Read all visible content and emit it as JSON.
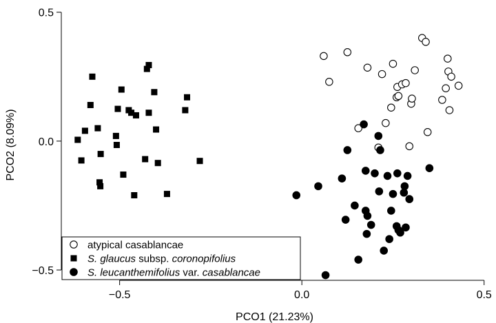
{
  "chart_data": {
    "type": "scatter",
    "title": "",
    "xlabel": "PCO1 (21.23%)",
    "ylabel": "PCO2 (8.09%)",
    "xlim": [
      -0.66,
      0.51
    ],
    "ylim": [
      -0.54,
      0.51
    ],
    "x_ticks": [
      -0.5,
      0.0,
      0.5
    ],
    "y_ticks": [
      -0.5,
      0.0,
      0.5
    ],
    "x_tick_labels": [
      "−0.5",
      "0.0",
      "0.5"
    ],
    "y_tick_labels": [
      "−0.5",
      "0.0",
      "0.5"
    ],
    "grid": false,
    "legend_position": "bottom-left",
    "series": [
      {
        "name": "atypical casablancae",
        "legend_parts": [
          {
            "text": "atypical casablancae",
            "italic": false
          }
        ],
        "marker": "open-circle",
        "color": "#000000",
        "points": [
          [
            0.06,
            0.33
          ],
          [
            0.075,
            0.23
          ],
          [
            0.125,
            0.345
          ],
          [
            0.155,
            0.05
          ],
          [
            0.18,
            0.285
          ],
          [
            0.21,
            -0.025
          ],
          [
            0.22,
            0.26
          ],
          [
            0.23,
            0.07
          ],
          [
            0.245,
            0.13
          ],
          [
            0.25,
            0.3
          ],
          [
            0.26,
            0.17
          ],
          [
            0.262,
            0.21
          ],
          [
            0.265,
            0.175
          ],
          [
            0.275,
            0.22
          ],
          [
            0.285,
            0.225
          ],
          [
            0.295,
            -0.02
          ],
          [
            0.3,
            0.145
          ],
          [
            0.302,
            0.165
          ],
          [
            0.31,
            0.275
          ],
          [
            0.33,
            0.4
          ],
          [
            0.34,
            0.385
          ],
          [
            0.345,
            0.035
          ],
          [
            0.385,
            0.16
          ],
          [
            0.395,
            0.205
          ],
          [
            0.4,
            0.32
          ],
          [
            0.402,
            0.27
          ],
          [
            0.405,
            0.12
          ],
          [
            0.41,
            0.25
          ],
          [
            0.43,
            0.215
          ]
        ]
      },
      {
        "name": "S. glaucus subsp. coronopifolius",
        "legend_parts": [
          {
            "text": "S. glaucus",
            "italic": true
          },
          {
            "text": " subsp. ",
            "italic": false
          },
          {
            "text": "coronopifolius",
            "italic": true
          }
        ],
        "marker": "filled-square",
        "color": "#000000",
        "points": [
          [
            -0.615,
            0.005
          ],
          [
            -0.605,
            -0.075
          ],
          [
            -0.595,
            0.04
          ],
          [
            -0.58,
            0.14
          ],
          [
            -0.575,
            0.25
          ],
          [
            -0.56,
            0.05
          ],
          [
            -0.555,
            -0.16
          ],
          [
            -0.553,
            -0.175
          ],
          [
            -0.552,
            -0.05
          ],
          [
            -0.51,
            0.02
          ],
          [
            -0.508,
            -0.015
          ],
          [
            -0.505,
            0.125
          ],
          [
            -0.495,
            0.2
          ],
          [
            -0.49,
            -0.13
          ],
          [
            -0.475,
            0.12
          ],
          [
            -0.468,
            0.11
          ],
          [
            -0.46,
            -0.21
          ],
          [
            -0.455,
            0.1
          ],
          [
            -0.43,
            -0.07
          ],
          [
            -0.425,
            0.28
          ],
          [
            -0.42,
            0.295
          ],
          [
            -0.42,
            0.11
          ],
          [
            -0.405,
            0.19
          ],
          [
            -0.4,
            0.045
          ],
          [
            -0.395,
            -0.085
          ],
          [
            -0.37,
            -0.205
          ],
          [
            -0.32,
            0.12
          ],
          [
            -0.315,
            0.17
          ],
          [
            -0.28,
            -0.077
          ]
        ]
      },
      {
        "name": "S. leucanthemifolius var. casablancae",
        "legend_parts": [
          {
            "text": "S. leucanthemifolius",
            "italic": true
          },
          {
            "text": " var. ",
            "italic": false
          },
          {
            "text": "casablancae",
            "italic": true
          }
        ],
        "marker": "filled-circle",
        "color": "#000000",
        "points": [
          [
            -0.015,
            -0.21
          ],
          [
            0.045,
            -0.175
          ],
          [
            0.065,
            -0.52
          ],
          [
            0.11,
            -0.145
          ],
          [
            0.125,
            -0.035
          ],
          [
            0.12,
            -0.305
          ],
          [
            0.145,
            -0.25
          ],
          [
            0.155,
            -0.46
          ],
          [
            0.17,
            0.065
          ],
          [
            0.175,
            -0.115
          ],
          [
            0.175,
            -0.27
          ],
          [
            0.178,
            -0.36
          ],
          [
            0.18,
            -0.29
          ],
          [
            0.19,
            -0.325
          ],
          [
            0.2,
            -0.125
          ],
          [
            0.21,
            0.02
          ],
          [
            0.212,
            -0.195
          ],
          [
            0.215,
            -0.035
          ],
          [
            0.225,
            -0.425
          ],
          [
            0.235,
            -0.135
          ],
          [
            0.24,
            -0.38
          ],
          [
            0.245,
            -0.27
          ],
          [
            0.25,
            -0.205
          ],
          [
            0.26,
            -0.33
          ],
          [
            0.262,
            -0.125
          ],
          [
            0.265,
            -0.345
          ],
          [
            0.27,
            -0.355
          ],
          [
            0.28,
            -0.2
          ],
          [
            0.282,
            -0.175
          ],
          [
            0.285,
            -0.335
          ],
          [
            0.29,
            -0.135
          ],
          [
            0.295,
            -0.225
          ],
          [
            0.35,
            -0.105
          ]
        ]
      }
    ]
  }
}
